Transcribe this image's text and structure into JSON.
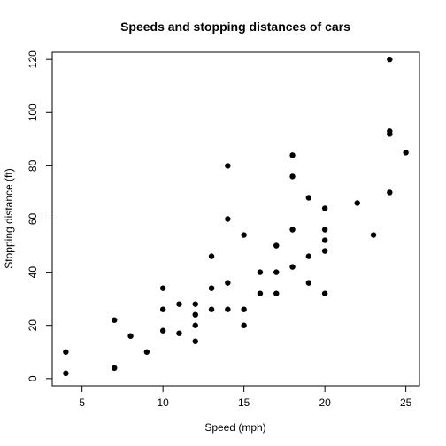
{
  "chart_data": {
    "type": "scatter",
    "title": "Speeds and stopping distances of cars",
    "xlabel": "Speed (mph)",
    "ylabel": "Stopping distance (ft)",
    "xlim": [
      3.16,
      25.84
    ],
    "ylim": [
      -2.72,
      122.72
    ],
    "xticks": [
      5,
      10,
      15,
      20,
      25
    ],
    "yticks": [
      0,
      20,
      40,
      60,
      80,
      100,
      120
    ],
    "grid": false,
    "legend": "none",
    "marker_color": "#000000",
    "points": [
      [
        4,
        2
      ],
      [
        4,
        10
      ],
      [
        7,
        4
      ],
      [
        7,
        22
      ],
      [
        8,
        16
      ],
      [
        9,
        10
      ],
      [
        10,
        18
      ],
      [
        10,
        26
      ],
      [
        10,
        34
      ],
      [
        11,
        17
      ],
      [
        11,
        28
      ],
      [
        12,
        14
      ],
      [
        12,
        20
      ],
      [
        12,
        24
      ],
      [
        12,
        28
      ],
      [
        13,
        26
      ],
      [
        13,
        34
      ],
      [
        13,
        34
      ],
      [
        13,
        46
      ],
      [
        14,
        26
      ],
      [
        14,
        36
      ],
      [
        14,
        60
      ],
      [
        14,
        80
      ],
      [
        15,
        20
      ],
      [
        15,
        26
      ],
      [
        15,
        54
      ],
      [
        16,
        32
      ],
      [
        16,
        40
      ],
      [
        17,
        32
      ],
      [
        17,
        40
      ],
      [
        17,
        50
      ],
      [
        18,
        42
      ],
      [
        18,
        56
      ],
      [
        18,
        76
      ],
      [
        18,
        84
      ],
      [
        19,
        36
      ],
      [
        19,
        46
      ],
      [
        19,
        68
      ],
      [
        20,
        32
      ],
      [
        20,
        48
      ],
      [
        20,
        52
      ],
      [
        20,
        56
      ],
      [
        20,
        64
      ],
      [
        22,
        66
      ],
      [
        23,
        54
      ],
      [
        24,
        70
      ],
      [
        24,
        92
      ],
      [
        24,
        93
      ],
      [
        24,
        120
      ],
      [
        25,
        85
      ]
    ]
  }
}
